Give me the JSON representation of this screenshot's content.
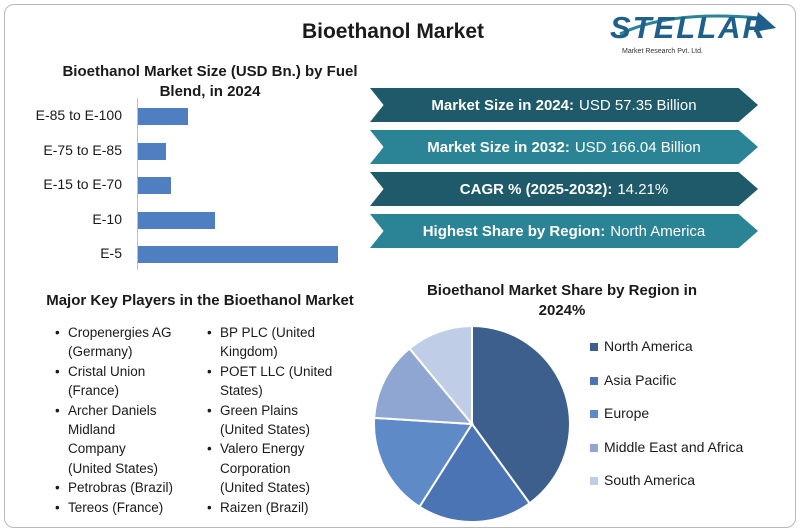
{
  "header": {
    "title": "Bioethanol Market"
  },
  "logo": {
    "name": "STELLAR",
    "tagline": "Market Research Pvt. Ltd.",
    "color": "#1f5f8b"
  },
  "chart_data": [
    {
      "type": "bar",
      "orientation": "horizontal",
      "title": "Bioethanol Market Size (USD Bn.) by Fuel Blend, in 2024",
      "categories": [
        "E-85 to E-100",
        "E-75 to E-85",
        "E-15 to E-70",
        "E-10",
        "E-5"
      ],
      "values": [
        5.0,
        2.8,
        3.3,
        7.7,
        20.0
      ],
      "color": "#4f7fc0"
    },
    {
      "type": "pie",
      "title": "Bioethanol Market Share by Region in 2024%",
      "labels": [
        "North America",
        "Asia Pacific",
        "Europe",
        "Middle East and Africa",
        "South America"
      ],
      "values": [
        40,
        19,
        17,
        13,
        11
      ],
      "colors": [
        "#3d5f8e",
        "#4a74b3",
        "#5e8bc7",
        "#8ea6d1",
        "#bfcde6"
      ],
      "legend_position": "right"
    }
  ],
  "highlights": [
    {
      "label": "Market Size in 2024:",
      "value": "USD 57.35 Billion",
      "color": "#1f5a6b"
    },
    {
      "label": "Market Size in 2032:",
      "value": "USD 166.04 Billion",
      "color": "#2a8496"
    },
    {
      "label": "CAGR % (2025-2032):",
      "value": "14.21%",
      "color": "#1f5a6b"
    },
    {
      "label": "Highest Share by Region:",
      "value": "North America",
      "color": "#2a8496"
    }
  ],
  "players": {
    "title": "Major Key Players in the Bioethanol Market",
    "col1": [
      [
        "Cropenergies AG",
        "(Germany)"
      ],
      [
        "Cristal Union",
        "(France)"
      ],
      [
        "Archer Daniels",
        "Midland",
        "Company",
        "(United States)"
      ],
      [
        "Petrobras (Brazil)"
      ],
      [
        "Tereos (France)"
      ]
    ],
    "col2": [
      [
        "BP PLC (United",
        "Kingdom)"
      ],
      [
        "POET LLC (United",
        "States)"
      ],
      [
        "Green Plains",
        "(United States)"
      ],
      [
        "Valero Energy",
        "Corporation",
        "(United States)"
      ],
      [
        "Raizen (Brazil)"
      ]
    ]
  }
}
